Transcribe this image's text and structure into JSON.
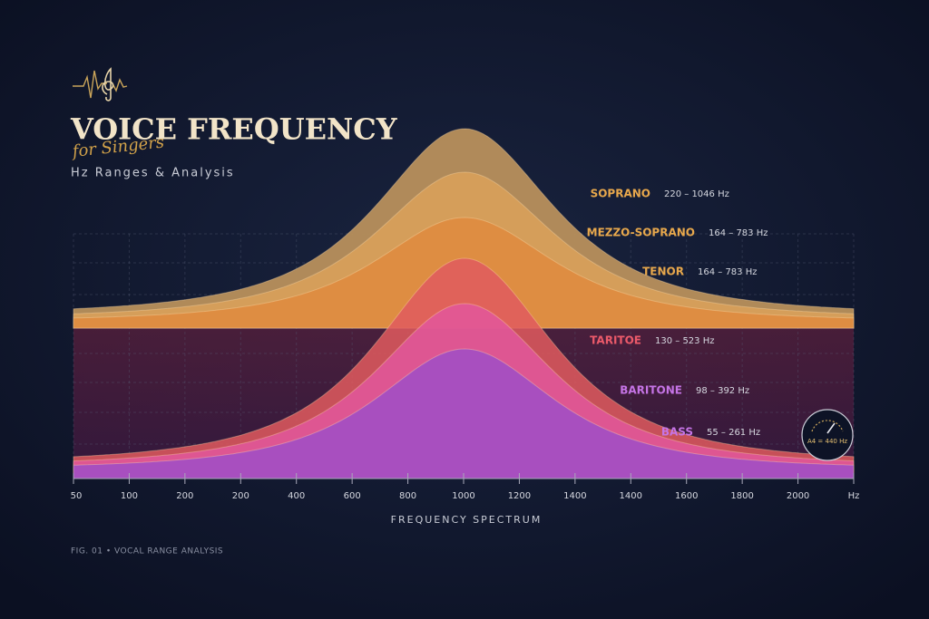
{
  "header": {
    "title": "VOICE FREQUENCY",
    "script": "for Singers",
    "subtitle": "Hz Ranges & Analysis"
  },
  "voices": [
    {
      "name": "SOPRANO",
      "range": "220 – 1046 Hz"
    },
    {
      "name": "MEZZO-SOPRANO",
      "range": "164 – 783 Hz"
    },
    {
      "name": "TENOR",
      "range": "164 – 783 Hz"
    },
    {
      "name": "TARITOE",
      "range": "130 – 523 Hz"
    },
    {
      "name": "BARITONE",
      "range": "98 – 392 Hz"
    },
    {
      "name": "BASS",
      "range": "55 – 261 Hz"
    }
  ],
  "axis": {
    "ticks": [
      "50",
      "100",
      "200",
      "200",
      "400",
      "600",
      "800",
      "1000",
      "1200",
      "1400",
      "1400",
      "1600",
      "1800",
      "2000",
      "Hz"
    ],
    "label": "FREQUENCY SPECTRUM"
  },
  "badge": "A4 = 440 Hz",
  "caption": "FIG. 01 • VOCAL RANGE ANALYSIS"
}
